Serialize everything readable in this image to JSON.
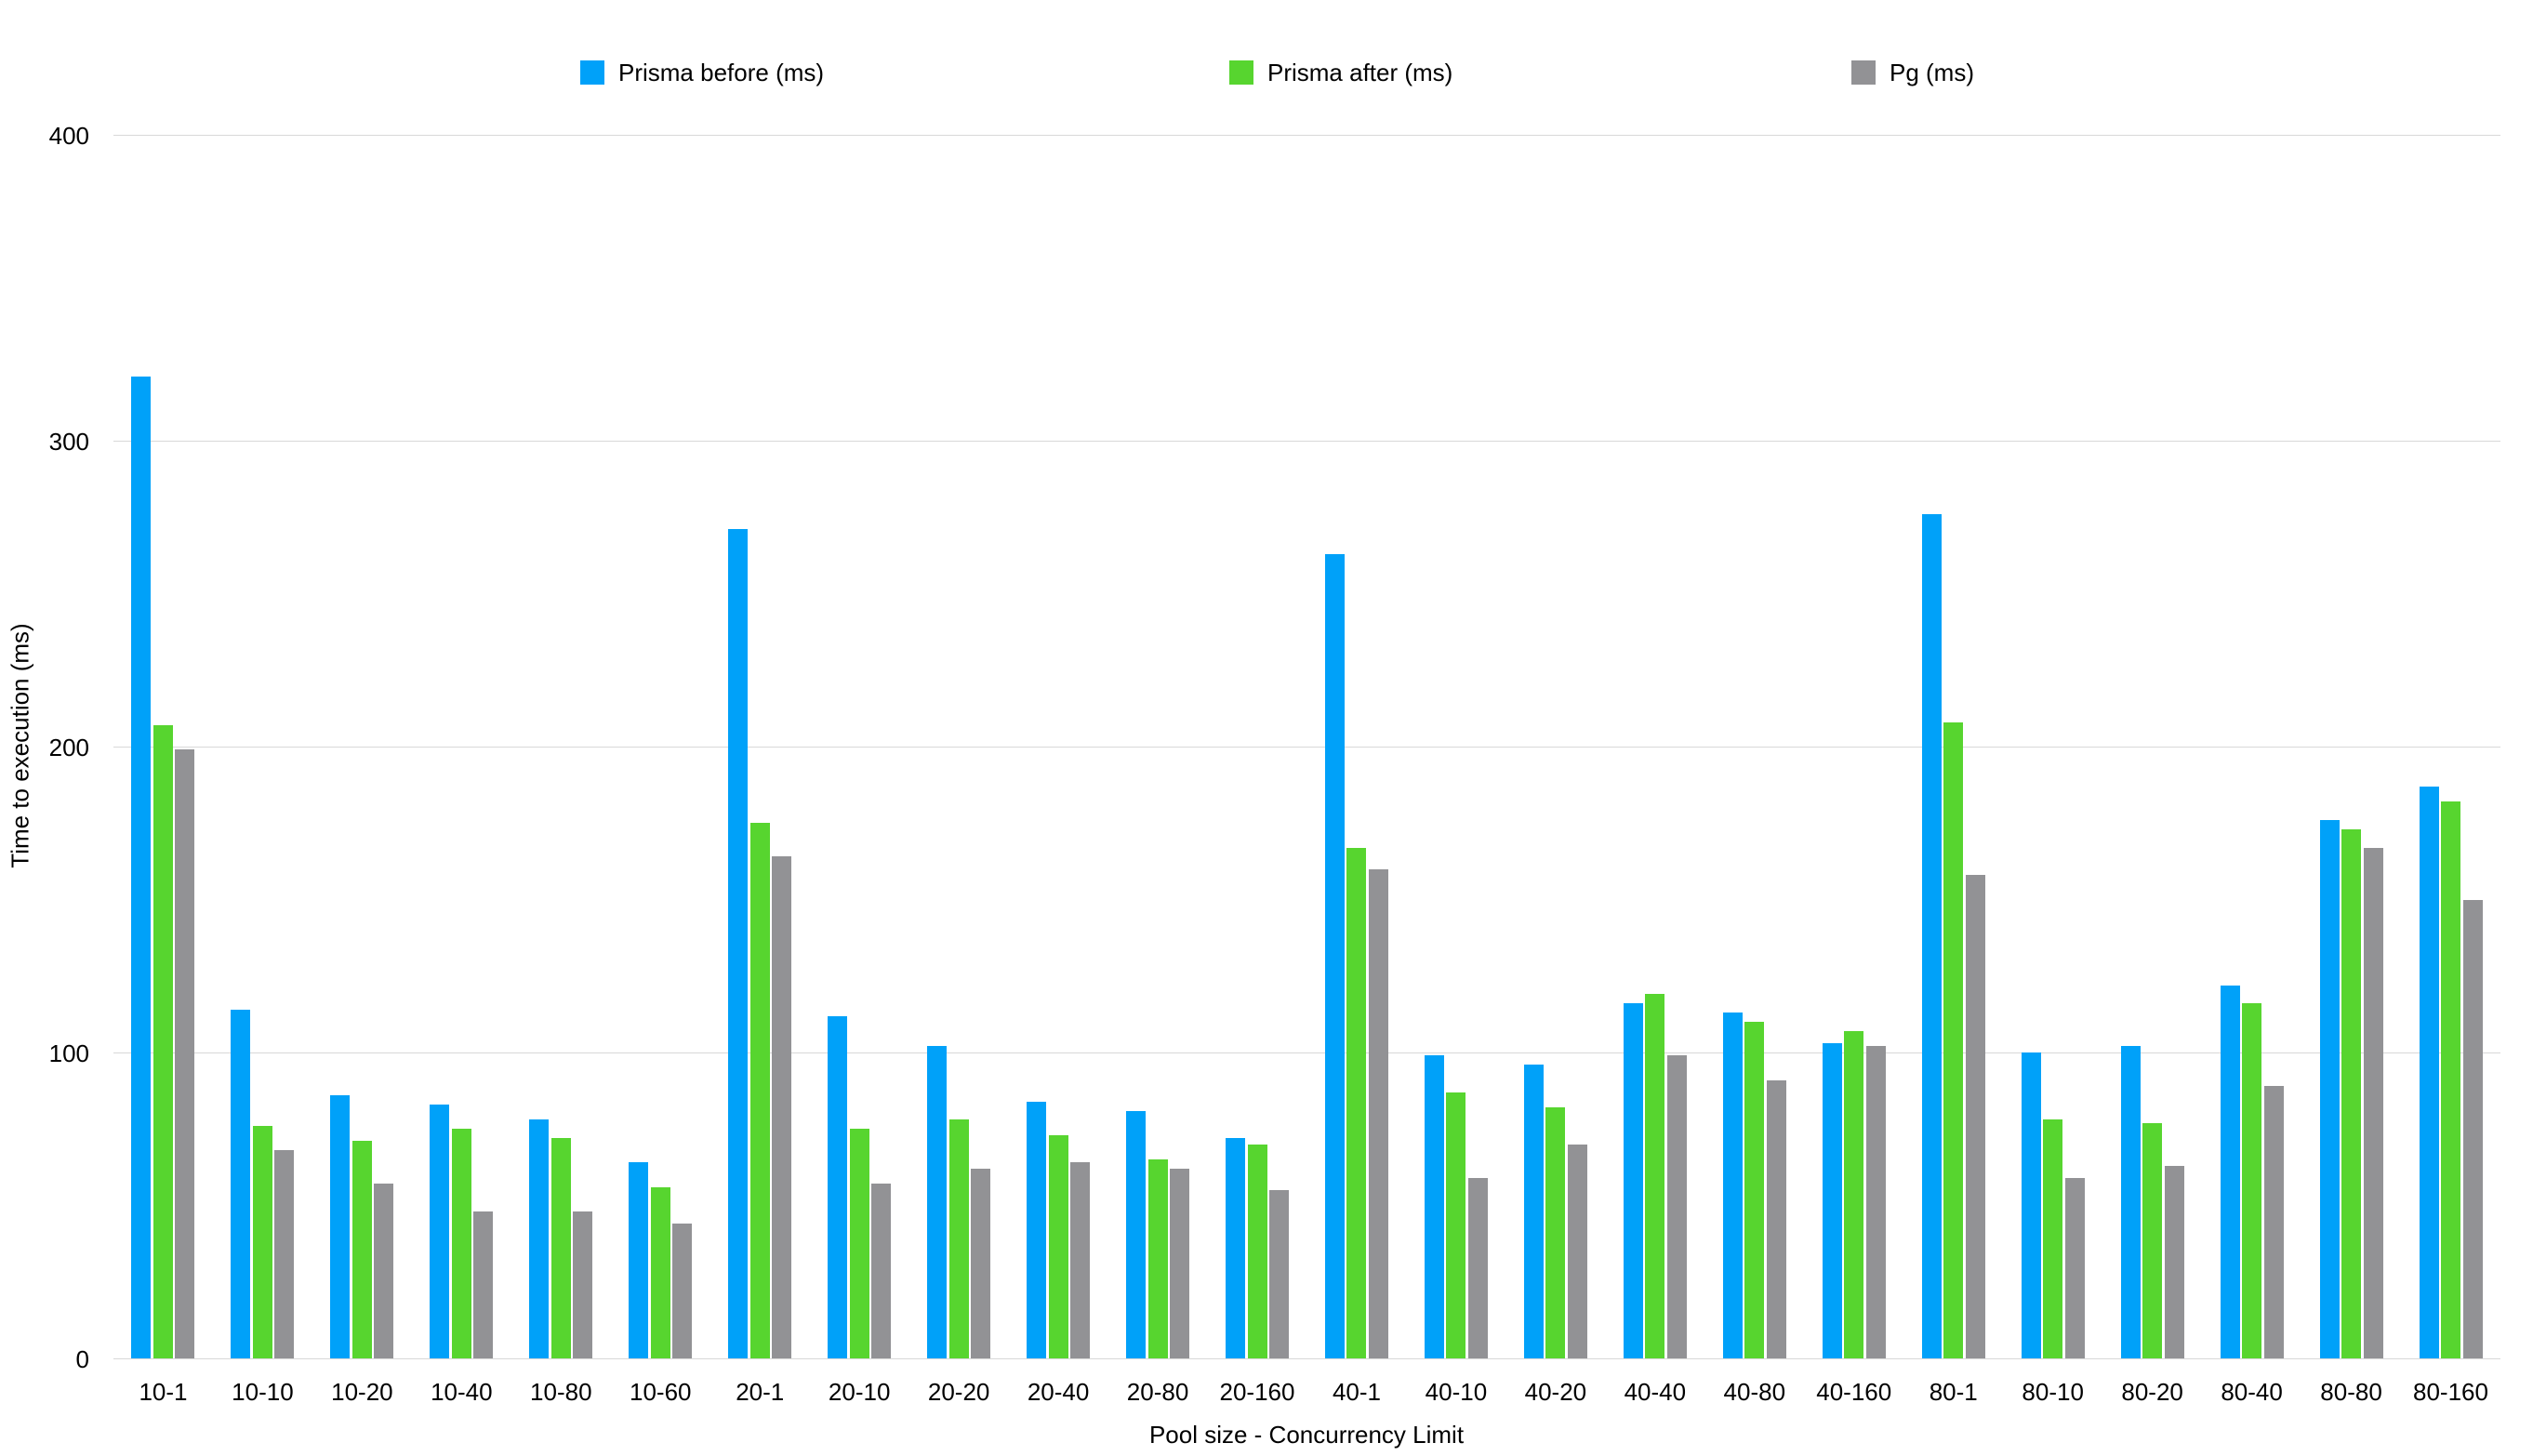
{
  "chart_data": {
    "type": "bar",
    "title": "",
    "xlabel": "Pool size - Concurrency Limit",
    "ylabel": "Time to execution (ms)",
    "ylim": [
      0,
      400
    ],
    "yticks": [
      0,
      100,
      200,
      300,
      400
    ],
    "grid": "horizontal",
    "gridline_color": "#d8d8d8",
    "background_color": "#ffffff",
    "text_color": "#000000",
    "legend_position": "top",
    "categories": [
      "10-1",
      "10-10",
      "10-20",
      "10-40",
      "10-80",
      "10-60",
      "20-1",
      "20-10",
      "20-20",
      "20-40",
      "20-80",
      "20-160",
      "40-1",
      "40-10",
      "40-20",
      "40-40",
      "40-80",
      "40-160",
      "80-1",
      "80-10",
      "80-20",
      "80-40",
      "80-80",
      "80-160"
    ],
    "series": [
      {
        "name": "Prisma before (ms)",
        "color": "#00A1F9",
        "values": [
          321,
          114,
          86,
          83,
          78,
          64,
          271,
          112,
          102,
          84,
          81,
          72,
          263,
          99,
          96,
          116,
          113,
          103,
          276,
          100,
          102,
          122,
          176,
          187
        ]
      },
      {
        "name": "Prisma after (ms)",
        "color": "#57D52F",
        "values": [
          207,
          76,
          71,
          75,
          72,
          56,
          175,
          75,
          78,
          73,
          65,
          70,
          167,
          87,
          82,
          119,
          110,
          107,
          208,
          78,
          77,
          116,
          173,
          182
        ]
      },
      {
        "name": "Pg (ms)",
        "color": "#929295",
        "values": [
          199,
          68,
          57,
          48,
          48,
          44,
          164,
          57,
          62,
          64,
          62,
          55,
          160,
          59,
          70,
          99,
          91,
          102,
          158,
          59,
          63,
          89,
          167,
          150
        ]
      }
    ]
  }
}
